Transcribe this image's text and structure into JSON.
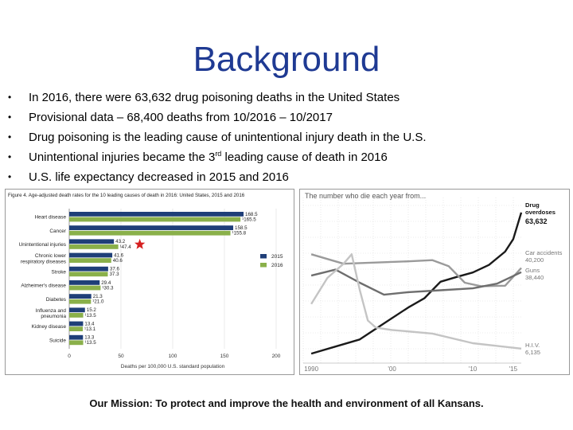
{
  "title": "Background",
  "bullets": [
    {
      "text": "In 2016, there were 63,632 drug poisoning deaths in the United States"
    },
    {
      "text": "Provisional data – 68,400 deaths from 10/2016 – 10/2017"
    },
    {
      "text": "Drug poisoning is the leading cause of unintentional injury death in the U.S."
    },
    {
      "pre": "Unintentional injuries became the 3",
      "sup": "rd",
      "post": " leading cause of death in 2016"
    },
    {
      "text": "U.S. life expectancy decreased in 2015 and 2016"
    }
  ],
  "footer": "Our Mission: To protect and improve the health and environment of all Kansans.",
  "star_color": "#d62020",
  "chart_data": [
    {
      "type": "bar",
      "title": "Figure 4. Age-adjusted death rates for the 10 leading causes of death in 2016: United States, 2015 and 2016",
      "xlabel": "Deaths per 100,000 U.S. standard population",
      "xlim": [
        0,
        200
      ],
      "xticks": [
        0,
        50,
        100,
        150,
        200
      ],
      "legend_position": "right",
      "categories": [
        "Heart disease",
        "Cancer",
        "Unintentional injuries",
        "Chronic lower respiratory diseases",
        "Stroke",
        "Alzheimer's disease",
        "Diabetes",
        "Influenza and pneumonia",
        "Kidney disease",
        "Suicide"
      ],
      "category_lines": [
        [
          "Heart disease"
        ],
        [
          "Cancer"
        ],
        [
          "Unintentional injuries"
        ],
        [
          "Chronic lower",
          "respiratory diseases"
        ],
        [
          "Stroke"
        ],
        [
          "Alzheimer's disease"
        ],
        [
          "Diabetes"
        ],
        [
          "Influenza and",
          "pneumonia"
        ],
        [
          "Kidney disease"
        ],
        [
          "Suicide"
        ]
      ],
      "series": [
        {
          "name": "2015",
          "color": "#1f3f78",
          "values": [
            168.5,
            158.5,
            43.2,
            41.6,
            37.6,
            29.4,
            21.3,
            15.2,
            13.4,
            13.3
          ],
          "labels": [
            "168.5",
            "158.5",
            "43.2",
            "41.6",
            "37.6",
            "29.4",
            "21.3",
            "15.2",
            "13.4",
            "13.3"
          ]
        },
        {
          "name": "2016",
          "color": "#8ab04a",
          "values": [
            165.5,
            155.8,
            47.4,
            40.6,
            37.3,
            30.3,
            21.0,
            13.5,
            13.1,
            13.5
          ],
          "labels": [
            "¹165.5",
            "¹155.8",
            "¹47.4",
            "40.6",
            "37.3",
            "¹30.3",
            "¹21.0",
            "¹13.5",
            "¹13.1",
            "¹13.5"
          ]
        }
      ]
    },
    {
      "type": "line",
      "title": "The number who die each year from...",
      "x_ticks": [
        "1990",
        "'00",
        "'10",
        "'15"
      ],
      "x_tick_values": [
        1990,
        2000,
        2010,
        2015
      ],
      "xlim": [
        1989,
        2016
      ],
      "ylim": [
        0,
        70000
      ],
      "series": [
        {
          "name": "Drug overdoses",
          "label_lines": [
            "Drug",
            "overdoses"
          ],
          "value_label": "63,632",
          "color": "#1a1a1a",
          "x": [
            1990,
            1993,
            1996,
            1999,
            2002,
            2004,
            2006,
            2008,
            2010,
            2012,
            2014,
            2015,
            2016
          ],
          "y": [
            4000,
            7000,
            10000,
            16800,
            23500,
            27400,
            34400,
            36400,
            38300,
            41500,
            47100,
            52400,
            63632
          ]
        },
        {
          "name": "Car accidents",
          "label_lines": [
            "Car accidents"
          ],
          "value_label": "40,200",
          "color": "#9a9a9a",
          "x": [
            1990,
            1994,
            1998,
            2002,
            2005,
            2007,
            2009,
            2011,
            2014,
            2016
          ],
          "y": [
            46000,
            42000,
            42500,
            43000,
            43500,
            41000,
            34000,
            32500,
            32700,
            40200
          ]
        },
        {
          "name": "Guns",
          "label_lines": [
            "Guns"
          ],
          "value_label": "38,440",
          "color": "#6e6e6e",
          "x": [
            1990,
            1993,
            1996,
            1999,
            2002,
            2006,
            2010,
            2013,
            2016
          ],
          "y": [
            37000,
            39500,
            34000,
            28900,
            30000,
            30800,
            31600,
            33600,
            38440
          ]
        },
        {
          "name": "H.I.V.",
          "label_lines": [
            "H.I.V."
          ],
          "value_label": "6,135",
          "color": "#c4c4c4",
          "x": [
            1990,
            1992,
            1994,
            1995,
            1996,
            1997,
            1998,
            2000,
            2005,
            2010,
            2016
          ],
          "y": [
            25000,
            36000,
            42000,
            46000,
            31000,
            18000,
            15000,
            14000,
            12500,
            8400,
            6135
          ]
        }
      ]
    }
  ]
}
